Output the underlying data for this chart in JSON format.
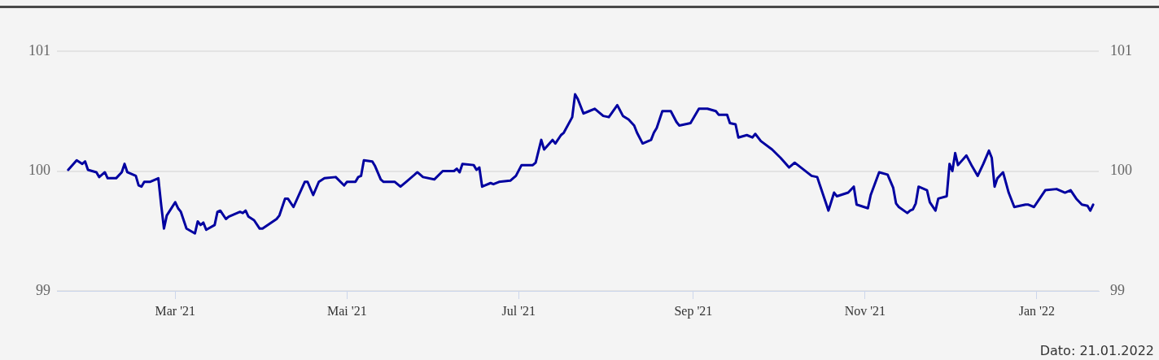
{
  "chart_data": {
    "type": "line",
    "x": [
      "2021-01-22",
      "2021-01-25",
      "2021-01-27",
      "2021-01-28",
      "2021-01-29",
      "2021-02-01",
      "2021-02-02",
      "2021-02-04",
      "2021-02-05",
      "2021-02-08",
      "2021-02-10",
      "2021-02-11",
      "2021-02-12",
      "2021-02-15",
      "2021-02-16",
      "2021-02-17",
      "2021-02-18",
      "2021-02-20",
      "2021-02-23",
      "2021-02-24",
      "2021-02-25",
      "2021-02-26",
      "2021-03-01",
      "2021-03-02",
      "2021-03-03",
      "2021-03-05",
      "2021-03-08",
      "2021-03-09",
      "2021-03-10",
      "2021-03-11",
      "2021-03-12",
      "2021-03-15",
      "2021-03-16",
      "2021-03-17",
      "2021-03-19",
      "2021-03-20",
      "2021-03-22",
      "2021-03-24",
      "2021-03-25",
      "2021-03-26",
      "2021-03-27",
      "2021-03-29",
      "2021-03-31",
      "2021-04-01",
      "2021-04-06",
      "2021-04-07",
      "2021-04-09",
      "2021-04-10",
      "2021-04-12",
      "2021-04-16",
      "2021-04-17",
      "2021-04-19",
      "2021-04-21",
      "2021-04-23",
      "2021-04-27",
      "2021-04-30",
      "2021-05-01",
      "2021-05-04",
      "2021-05-05",
      "2021-05-06",
      "2021-05-07",
      "2021-05-10",
      "2021-05-11",
      "2021-05-13",
      "2021-05-14",
      "2021-05-18",
      "2021-05-20",
      "2021-05-22",
      "2021-05-26",
      "2021-05-28",
      "2021-06-01",
      "2021-06-04",
      "2021-06-08",
      "2021-06-09",
      "2021-06-10",
      "2021-06-11",
      "2021-06-15",
      "2021-06-16",
      "2021-06-17",
      "2021-06-18",
      "2021-06-19",
      "2021-06-21",
      "2021-06-22",
      "2021-06-24",
      "2021-06-28",
      "2021-06-30",
      "2021-07-02",
      "2021-07-06",
      "2021-07-07",
      "2021-07-09",
      "2021-07-10",
      "2021-07-13",
      "2021-07-14",
      "2021-07-16",
      "2021-07-17",
      "2021-07-20",
      "2021-07-21",
      "2021-07-22",
      "2021-07-24",
      "2021-07-26",
      "2021-07-28",
      "2021-07-31",
      "2021-08-02",
      "2021-08-05",
      "2021-08-07",
      "2021-08-09",
      "2021-08-11",
      "2021-08-12",
      "2021-08-14",
      "2021-08-17",
      "2021-08-18",
      "2021-08-19",
      "2021-08-21",
      "2021-08-24",
      "2021-08-26",
      "2021-08-27",
      "2021-08-31",
      "2021-09-03",
      "2021-09-06",
      "2021-09-09",
      "2021-09-10",
      "2021-09-13",
      "2021-09-14",
      "2021-09-16",
      "2021-09-17",
      "2021-09-20",
      "2021-09-22",
      "2021-09-23",
      "2021-09-25",
      "2021-09-29",
      "2021-10-02",
      "2021-10-05",
      "2021-10-07",
      "2021-10-13",
      "2021-10-15",
      "2021-10-16",
      "2021-10-19",
      "2021-10-21",
      "2021-10-22",
      "2021-10-26",
      "2021-10-28",
      "2021-10-29",
      "2021-11-02",
      "2021-11-03",
      "2021-11-06",
      "2021-11-09",
      "2021-11-11",
      "2021-11-12",
      "2021-11-13",
      "2021-11-16",
      "2021-11-17",
      "2021-11-18",
      "2021-11-19",
      "2021-11-20",
      "2021-11-23",
      "2021-11-24",
      "2021-11-26",
      "2021-11-27",
      "2021-11-30",
      "2021-12-01",
      "2021-12-02",
      "2021-12-03",
      "2021-12-04",
      "2021-12-07",
      "2021-12-09",
      "2021-12-11",
      "2021-12-13",
      "2021-12-15",
      "2021-12-16",
      "2021-12-17",
      "2021-12-18",
      "2021-12-20",
      "2021-12-22",
      "2021-12-24",
      "2021-12-28",
      "2021-12-29",
      "2021-12-31",
      "2022-01-04",
      "2022-01-08",
      "2022-01-11",
      "2022-01-13",
      "2022-01-15",
      "2022-01-17",
      "2022-01-19",
      "2022-01-20",
      "2022-01-21"
    ],
    "series": [
      {
        "color": "#0000a0",
        "values": [
          100.01,
          100.09,
          100.06,
          100.08,
          100.01,
          99.99,
          99.95,
          99.99,
          99.94,
          99.94,
          99.99,
          100.06,
          99.99,
          99.96,
          99.88,
          99.87,
          99.91,
          99.91,
          99.94,
          99.72,
          99.52,
          99.63,
          99.74,
          99.69,
          99.66,
          99.52,
          99.48,
          99.58,
          99.55,
          99.57,
          99.51,
          99.55,
          99.66,
          99.67,
          99.6,
          99.62,
          99.64,
          99.66,
          99.65,
          99.67,
          99.62,
          99.59,
          99.52,
          99.52,
          99.6,
          99.63,
          99.77,
          99.77,
          99.7,
          99.91,
          99.91,
          99.8,
          99.91,
          99.94,
          99.95,
          99.88,
          99.91,
          99.91,
          99.95,
          99.96,
          100.09,
          100.08,
          100.04,
          99.93,
          99.91,
          99.91,
          99.87,
          99.91,
          99.99,
          99.95,
          99.93,
          100.0,
          100.0,
          100.02,
          99.99,
          100.06,
          100.05,
          100.01,
          100.03,
          99.87,
          99.88,
          99.9,
          99.89,
          99.91,
          99.92,
          99.96,
          100.05,
          100.05,
          100.07,
          100.26,
          100.18,
          100.26,
          100.23,
          100.3,
          100.32,
          100.45,
          100.64,
          100.6,
          100.48,
          100.5,
          100.52,
          100.46,
          100.45,
          100.55,
          100.46,
          100.43,
          100.38,
          100.32,
          100.23,
          100.26,
          100.32,
          100.36,
          100.5,
          100.5,
          100.41,
          100.38,
          100.4,
          100.52,
          100.52,
          100.5,
          100.47,
          100.47,
          100.4,
          100.39,
          100.28,
          100.3,
          100.28,
          100.31,
          100.25,
          100.18,
          100.11,
          100.03,
          100.07,
          99.96,
          99.95,
          99.88,
          99.67,
          99.82,
          99.79,
          99.82,
          99.87,
          99.72,
          99.69,
          99.8,
          99.99,
          99.97,
          99.86,
          99.73,
          99.7,
          99.65,
          99.67,
          99.68,
          99.73,
          99.87,
          99.84,
          99.74,
          99.67,
          99.77,
          99.79,
          100.06,
          100.0,
          100.15,
          100.05,
          100.13,
          100.04,
          99.96,
          100.06,
          100.17,
          100.11,
          99.87,
          99.94,
          99.99,
          99.82,
          99.7,
          99.72,
          99.72,
          99.7,
          99.84,
          99.85,
          99.82,
          99.84,
          99.77,
          99.72,
          99.71,
          99.67,
          99.72
        ]
      }
    ],
    "xlim": [
      "2021-01-18",
      "2022-01-23"
    ],
    "xticks": [
      {
        "value": "2021-03-01",
        "label": "Mar '21"
      },
      {
        "value": "2021-05-01",
        "label": "Mai '21"
      },
      {
        "value": "2021-07-01",
        "label": "Jul '21"
      },
      {
        "value": "2021-09-01",
        "label": "Sep '21"
      },
      {
        "value": "2021-11-01",
        "label": "Nov '21"
      },
      {
        "value": "2022-01-01",
        "label": "Jan '22"
      }
    ],
    "ylim": [
      99,
      101
    ],
    "yticks": [
      99,
      100,
      101
    ],
    "y2lim": [
      99,
      101
    ],
    "y2ticks": [
      99,
      100,
      101
    ],
    "grid": "y",
    "legend": false,
    "annotations": [
      "Dato: 21.01.2022"
    ]
  }
}
